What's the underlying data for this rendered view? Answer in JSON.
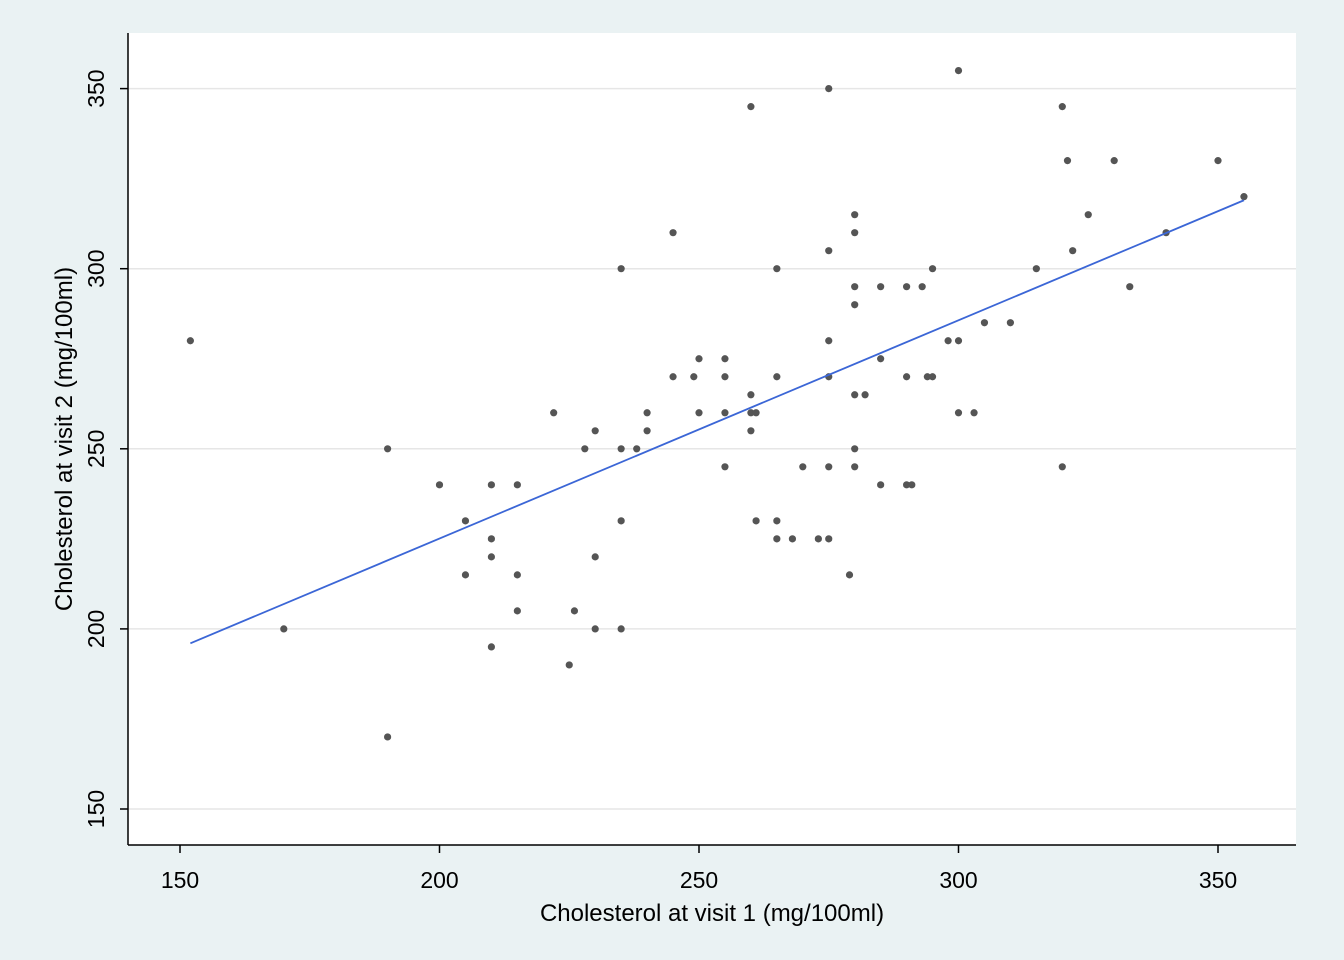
{
  "chart_data": {
    "type": "scatter",
    "title": "",
    "xlabel": "Cholesterol at visit 1 (mg/100ml)",
    "ylabel": "Cholesterol at visit 2 (mg/100ml)",
    "xlim": [
      140,
      365
    ],
    "ylim": [
      140,
      365
    ],
    "x_ticks": [
      150,
      200,
      250,
      300,
      350
    ],
    "y_ticks": [
      150,
      200,
      250,
      300,
      350
    ],
    "grid": "horizontal",
    "legend": "none",
    "colors": {
      "points": "#555555",
      "fit_line": "#3b66d6",
      "background": "#eaf2f3",
      "plot_area": "#ffffff",
      "grid": "#e6e6e6"
    },
    "series": [
      {
        "type": "scatter",
        "points": [
          [
            152,
            280
          ],
          [
            170,
            200
          ],
          [
            190,
            250
          ],
          [
            190,
            170
          ],
          [
            200,
            240
          ],
          [
            205,
            230
          ],
          [
            205,
            215
          ],
          [
            210,
            240
          ],
          [
            210,
            225
          ],
          [
            210,
            220
          ],
          [
            210,
            195
          ],
          [
            215,
            240
          ],
          [
            215,
            215
          ],
          [
            215,
            205
          ],
          [
            222,
            260
          ],
          [
            225,
            190
          ],
          [
            226,
            205
          ],
          [
            228,
            250
          ],
          [
            230,
            255
          ],
          [
            230,
            220
          ],
          [
            230,
            200
          ],
          [
            235,
            300
          ],
          [
            235,
            250
          ],
          [
            235,
            230
          ],
          [
            235,
            200
          ],
          [
            238,
            250
          ],
          [
            240,
            260
          ],
          [
            240,
            255
          ],
          [
            245,
            310
          ],
          [
            245,
            270
          ],
          [
            249,
            270
          ],
          [
            250,
            275
          ],
          [
            250,
            260
          ],
          [
            255,
            275
          ],
          [
            255,
            270
          ],
          [
            255,
            260
          ],
          [
            255,
            245
          ],
          [
            260,
            345
          ],
          [
            260,
            265
          ],
          [
            260,
            260
          ],
          [
            260,
            255
          ],
          [
            261,
            260
          ],
          [
            261,
            230
          ],
          [
            265,
            300
          ],
          [
            265,
            270
          ],
          [
            265,
            230
          ],
          [
            265,
            225
          ],
          [
            268,
            225
          ],
          [
            270,
            245
          ],
          [
            273,
            225
          ],
          [
            275,
            350
          ],
          [
            275,
            305
          ],
          [
            275,
            280
          ],
          [
            275,
            270
          ],
          [
            275,
            245
          ],
          [
            275,
            225
          ],
          [
            279,
            215
          ],
          [
            280,
            315
          ],
          [
            280,
            310
          ],
          [
            280,
            295
          ],
          [
            280,
            290
          ],
          [
            280,
            265
          ],
          [
            280,
            250
          ],
          [
            280,
            245
          ],
          [
            282,
            265
          ],
          [
            285,
            295
          ],
          [
            285,
            275
          ],
          [
            285,
            240
          ],
          [
            290,
            295
          ],
          [
            290,
            270
          ],
          [
            290,
            240
          ],
          [
            291,
            240
          ],
          [
            293,
            295
          ],
          [
            294,
            270
          ],
          [
            295,
            300
          ],
          [
            295,
            270
          ],
          [
            298,
            280
          ],
          [
            300,
            355
          ],
          [
            300,
            280
          ],
          [
            300,
            260
          ],
          [
            303,
            260
          ],
          [
            305,
            285
          ],
          [
            310,
            285
          ],
          [
            315,
            300
          ],
          [
            320,
            345
          ],
          [
            320,
            245
          ],
          [
            321,
            330
          ],
          [
            322,
            305
          ],
          [
            325,
            315
          ],
          [
            330,
            330
          ],
          [
            333,
            295
          ],
          [
            340,
            310
          ],
          [
            350,
            330
          ],
          [
            355,
            320
          ]
        ]
      },
      {
        "type": "line",
        "fit": "linear",
        "x": [
          152,
          355
        ],
        "y": [
          196,
          319
        ]
      }
    ]
  }
}
